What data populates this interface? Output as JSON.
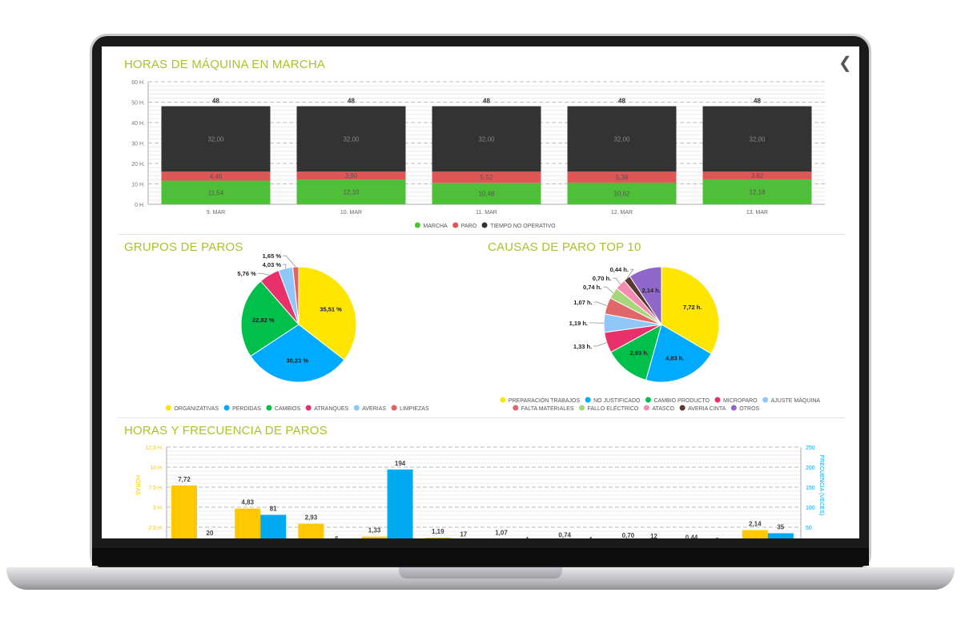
{
  "header": {
    "back_icon": "chevron-left-icon"
  },
  "machine_hours": {
    "title": "HORAS DE MÁQUINA EN MARCHA",
    "chart_data": {
      "type": "bar",
      "stacked": true,
      "categories": [
        "9. MAR",
        "10. MAR",
        "11. MAR",
        "12. MAR",
        "13. MAR"
      ],
      "yticks": [
        "0 H.",
        "10 H.",
        "20 H.",
        "30 H.",
        "40 H.",
        "50 H.",
        "60 H."
      ],
      "ylim": [
        0,
        60
      ],
      "totals": [
        "48",
        "48",
        "48",
        "48",
        "48"
      ],
      "series": [
        {
          "name": "MARCHA",
          "color": "#4fbf3a",
          "values": [
            11.54,
            12.1,
            10.48,
            10.62,
            12.18
          ],
          "labels": [
            "11,54",
            "12,10",
            "10,48",
            "10,62",
            "12,18"
          ]
        },
        {
          "name": "PARO",
          "color": "#e05555",
          "values": [
            4.46,
            3.9,
            5.52,
            5.38,
            3.82
          ],
          "labels": [
            "4,46",
            "3,90",
            "5,52",
            "5,38",
            "3,82"
          ]
        },
        {
          "name": "TIEMPO NO OPERATIVO",
          "color": "#333333",
          "values": [
            32,
            32,
            32,
            32,
            32
          ],
          "labels": [
            "32,00",
            "32,00",
            "32,00",
            "32,00",
            "32,00"
          ]
        }
      ],
      "legend": "bottom-right"
    }
  },
  "stop_groups": {
    "title": "GRUPOS DE PAROS",
    "chart_data": {
      "type": "pie",
      "categories": [
        "ORGANIZATIVAS",
        "PERDIDAS",
        "CAMBIOS",
        "ATRANQUES",
        "AVERIAS",
        "LIMPIEZAS"
      ],
      "values": [
        35.51,
        30.23,
        22.82,
        5.76,
        4.03,
        1.65
      ],
      "labels": [
        "35,51 %",
        "30,23 %",
        "22,82 %",
        "5,76 %",
        "4,03 %",
        "1,65 %"
      ],
      "colors": [
        "#ffe600",
        "#00aaff",
        "#00c04b",
        "#e8306a",
        "#8fc8f8",
        "#e86060"
      ],
      "legend": "bottom"
    }
  },
  "top_causes": {
    "title": "CAUSAS DE PARO TOP 10",
    "chart_data": {
      "type": "pie",
      "categories": [
        "PREPARACIÓN TRABAJOS",
        "NO JUSTIFICADO",
        "CAMBIO PRODUCTO",
        "MICROPARO",
        "AJUSTE MÁQUINA",
        "FALTA MATERIALES",
        "FALLO ELÉCTRICO",
        "ATASCO",
        "AVERIA CINTA",
        "OTROS"
      ],
      "values": [
        7.72,
        4.83,
        2.93,
        1.33,
        1.19,
        1.07,
        0.74,
        0.7,
        0.44,
        2.14
      ],
      "labels": [
        "7,72 h.",
        "4,83 h.",
        "2,93 h.",
        "1,33 h.",
        "1,19 h.",
        "1,07 h.",
        "0,74 h.",
        "0,70 h.",
        "0,44 h.",
        "2,14 h."
      ],
      "colors": [
        "#ffe600",
        "#00aaff",
        "#00c04b",
        "#e8306a",
        "#8fc8f8",
        "#e06868",
        "#a8d67a",
        "#f28cb0",
        "#5a3a2e",
        "#9068cc"
      ],
      "legend": "bottom"
    }
  },
  "freq": {
    "title": "HORAS Y FRECUENCIA DE PAROS",
    "chart_data": {
      "type": "bar",
      "ylabel": "HORAS",
      "y2label": "FRECUENCIA (VECES)",
      "yticks": [
        "2.5 H.",
        "5 H.",
        "7.5 H.",
        "10 H.",
        "12.5 H."
      ],
      "y2ticks": [
        "50",
        "100",
        "150",
        "200",
        "250"
      ],
      "ylim": [
        0,
        12.5
      ],
      "y2lim": [
        0,
        250
      ],
      "series": [
        {
          "name": "HORAS",
          "color": "#ffc800",
          "values": [
            7.72,
            4.83,
            2.93,
            1.33,
            1.19,
            1.07,
            0.74,
            0.7,
            0.44,
            2.14
          ],
          "labels": [
            "7,72",
            "4,83",
            "2,93",
            "1,33",
            "1,19",
            "1,07",
            "0,74",
            "0,70",
            "0,44",
            "2,14"
          ]
        },
        {
          "name": "FRECUENCIA",
          "color": "#00aaf0",
          "values": [
            20,
            81,
            6,
            194,
            17,
            4,
            4,
            12,
            2,
            35
          ],
          "labels": [
            "20",
            "81",
            "6",
            "194",
            "17",
            "4",
            "4",
            "12",
            "2",
            "35"
          ]
        }
      ]
    }
  }
}
